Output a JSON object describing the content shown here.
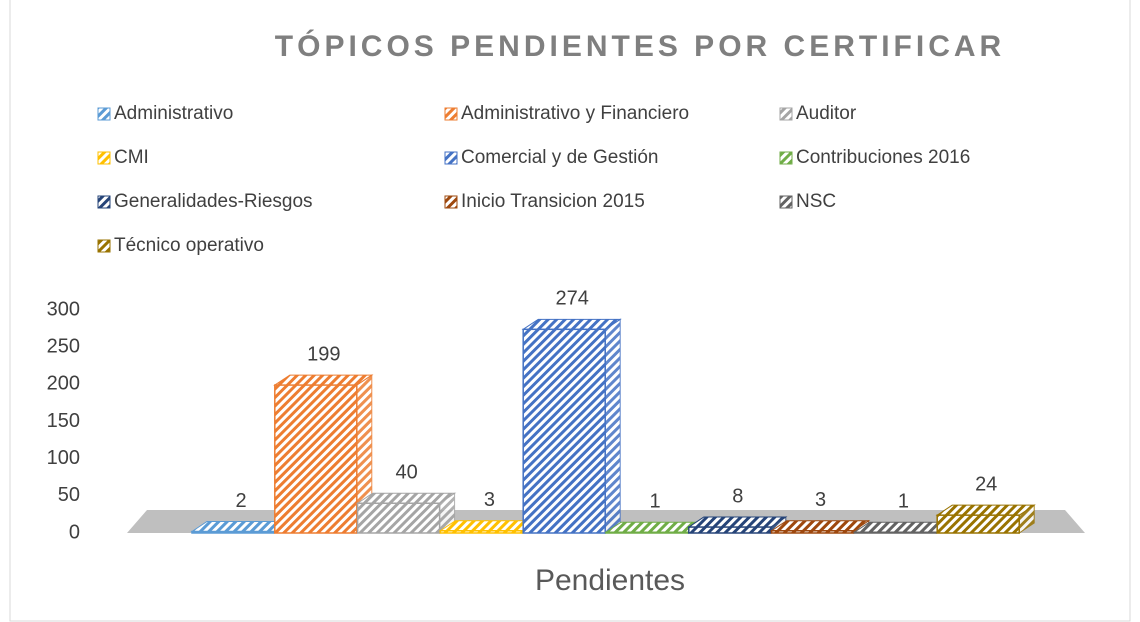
{
  "chart_data": {
    "type": "bar3d",
    "title": "TÓPICOS PENDIENTES POR CERTIFICAR",
    "categories": [
      "Pendientes"
    ],
    "ylim": [
      0,
      300
    ],
    "yticks": [
      0,
      50,
      100,
      150,
      200,
      250,
      300
    ],
    "series": [
      {
        "name": "Administrativo",
        "color": "#5b9bd5",
        "values": [
          2
        ]
      },
      {
        "name": "Administrativo y Financiero",
        "color": "#ed7d31",
        "values": [
          199
        ]
      },
      {
        "name": "Auditor",
        "color": "#a5a5a5",
        "values": [
          40
        ]
      },
      {
        "name": "CMI",
        "color": "#ffc000",
        "values": [
          3
        ]
      },
      {
        "name": "Comercial y de Gestión",
        "color": "#4472c4",
        "values": [
          274
        ]
      },
      {
        "name": "Contribuciones 2016",
        "color": "#70ad47",
        "values": [
          1
        ]
      },
      {
        "name": "Generalidades-Riesgos",
        "color": "#264478",
        "values": [
          8
        ]
      },
      {
        "name": "Inicio Transicion 2015",
        "color": "#9e480e",
        "values": [
          3
        ]
      },
      {
        "name": "NSC",
        "color": "#636363",
        "values": [
          1
        ]
      },
      {
        "name": "Técnico operativo",
        "color": "#997300",
        "values": [
          24
        ]
      }
    ]
  }
}
